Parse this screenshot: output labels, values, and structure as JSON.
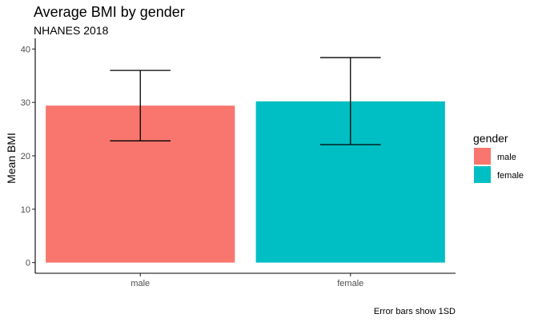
{
  "chart_data": {
    "type": "bar",
    "title": "Average BMI by gender",
    "subtitle": "NHANES 2018",
    "caption": "Error bars show 1SD",
    "xlabel": "",
    "ylabel": "Mean BMI",
    "categories": [
      "male",
      "female"
    ],
    "values": [
      29.4,
      30.2
    ],
    "error_low": [
      22.8,
      22.1
    ],
    "error_high": [
      36.0,
      38.4
    ],
    "colors": [
      "#F8766D",
      "#00BFC4"
    ],
    "ylim": [
      -2,
      42
    ],
    "yticks": [
      "0",
      "10",
      "20",
      "30",
      "40"
    ],
    "legend": {
      "title": "gender",
      "position": "right",
      "entries": [
        "male",
        "female"
      ]
    },
    "grid": false
  }
}
